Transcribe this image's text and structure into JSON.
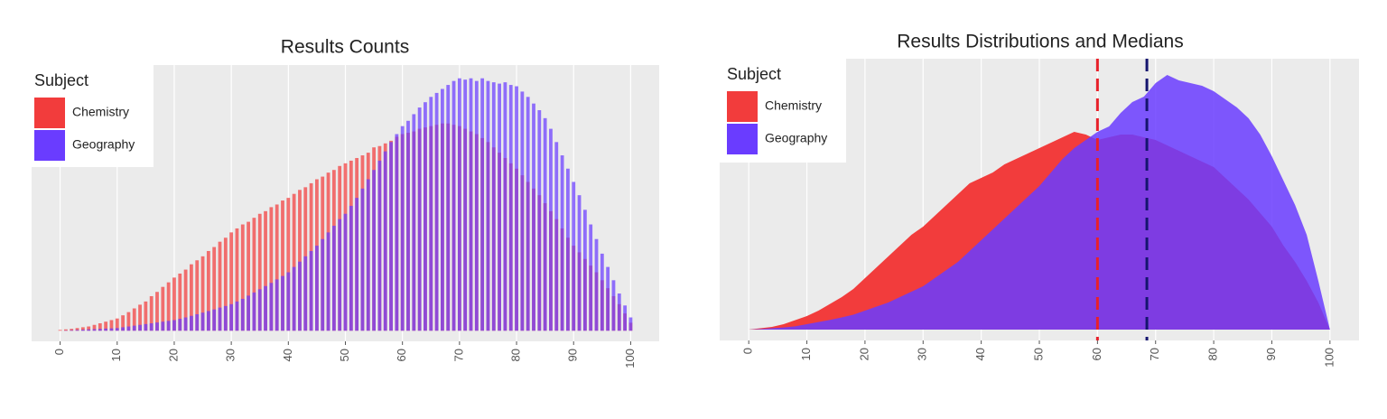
{
  "chart_data": [
    {
      "type": "bar",
      "title": "Results Counts",
      "legend_title": "Subject",
      "legend": "top-left",
      "grid": true,
      "xlim": [
        -5,
        105
      ],
      "ylim": [
        -4,
        100
      ],
      "xticks": [
        0,
        10,
        20,
        30,
        40,
        50,
        60,
        70,
        80,
        90,
        100
      ],
      "x": [
        0,
        1,
        2,
        3,
        4,
        5,
        6,
        7,
        8,
        9,
        10,
        11,
        12,
        13,
        14,
        15,
        16,
        17,
        18,
        19,
        20,
        21,
        22,
        23,
        24,
        25,
        26,
        27,
        28,
        29,
        30,
        31,
        32,
        33,
        34,
        35,
        36,
        37,
        38,
        39,
        40,
        41,
        42,
        43,
        44,
        45,
        46,
        47,
        48,
        49,
        50,
        51,
        52,
        53,
        54,
        55,
        56,
        57,
        58,
        59,
        60,
        61,
        62,
        63,
        64,
        65,
        66,
        67,
        68,
        69,
        70,
        71,
        72,
        73,
        74,
        75,
        76,
        77,
        78,
        79,
        80,
        81,
        82,
        83,
        84,
        85,
        86,
        87,
        88,
        89,
        90,
        91,
        92,
        93,
        94,
        95,
        96,
        97,
        98,
        99,
        100
      ],
      "series": [
        {
          "name": "Chemistry",
          "color": "#f23c3c",
          "values": [
            0.3,
            0.5,
            0.7,
            1,
            1.3,
            1.6,
            2.2,
            2.8,
            3.4,
            4,
            4.6,
            5.8,
            7,
            8.4,
            9.8,
            11,
            13,
            14.6,
            16.5,
            18.2,
            20,
            21.5,
            23,
            25,
            26.5,
            28,
            30,
            31.5,
            33.5,
            35,
            37,
            38.5,
            40,
            41,
            42.5,
            44,
            45,
            46.5,
            47.5,
            49,
            50,
            51.5,
            53,
            54,
            55.5,
            57,
            58,
            59.5,
            60.5,
            62,
            63,
            64,
            65,
            66,
            67,
            69,
            69.5,
            70.5,
            71.5,
            73,
            74,
            74.5,
            75,
            76,
            76.5,
            77,
            77.5,
            78,
            78,
            77.5,
            77,
            76,
            75,
            74,
            72.5,
            71,
            69,
            67,
            65,
            63,
            61,
            58.5,
            56,
            53.5,
            51,
            48,
            45,
            42,
            38.5,
            35,
            32,
            29.5,
            27,
            24.5,
            22,
            19,
            16,
            13,
            10,
            6.5,
            3
          ]
        },
        {
          "name": "Geography",
          "color": "#6a3cff",
          "values": [
            0,
            0.1,
            0.2,
            0.3,
            0.4,
            0.5,
            0.6,
            0.7,
            0.8,
            0.9,
            1,
            1.3,
            1.6,
            1.9,
            2.2,
            2.5,
            2.8,
            3.1,
            3.4,
            3.7,
            4,
            4.5,
            5,
            5.6,
            6.2,
            6.8,
            7.4,
            8,
            8.7,
            9.3,
            10,
            11,
            12,
            13.2,
            14.4,
            15.6,
            16.8,
            18,
            19.3,
            20.6,
            22,
            24,
            26,
            28,
            30,
            32,
            34.5,
            37,
            39.5,
            42,
            44,
            47,
            50,
            53.5,
            57,
            60.5,
            64,
            67.5,
            71,
            74,
            77,
            79,
            81.5,
            84,
            86,
            88,
            89.5,
            91,
            92.5,
            94,
            95,
            94.5,
            95,
            94,
            95,
            94,
            93.5,
            93,
            93.5,
            92.5,
            92,
            90,
            88,
            85.5,
            83,
            80,
            76,
            71,
            66,
            61,
            56,
            51,
            45.5,
            40,
            34.5,
            29,
            24,
            19,
            14,
            9.5,
            5
          ]
        }
      ]
    },
    {
      "type": "area",
      "title": "Results Distributions and Medians",
      "legend_title": "Subject",
      "legend": "top-left",
      "grid": true,
      "xlim": [
        -5,
        105
      ],
      "ylim": [
        -4,
        100
      ],
      "xticks": [
        0,
        10,
        20,
        30,
        40,
        50,
        60,
        70,
        80,
        90,
        100
      ],
      "x": [
        0,
        2,
        4,
        6,
        8,
        10,
        12,
        14,
        16,
        18,
        20,
        22,
        24,
        26,
        28,
        30,
        32,
        34,
        36,
        38,
        40,
        42,
        44,
        46,
        48,
        50,
        52,
        54,
        56,
        58,
        60,
        62,
        64,
        66,
        68,
        70,
        72,
        74,
        76,
        78,
        80,
        82,
        84,
        86,
        88,
        90,
        92,
        94,
        96,
        98,
        100
      ],
      "series": [
        {
          "name": "Chemistry",
          "color": "#f23c3c",
          "median": 60,
          "median_color": "#e8202a",
          "values": [
            0,
            0.5,
            1,
            2,
            3.5,
            5,
            7,
            9.5,
            12,
            15,
            19,
            23,
            27,
            31,
            35,
            38,
            42,
            46,
            50,
            54,
            56,
            58,
            61,
            63,
            65,
            67,
            69,
            71,
            73,
            72,
            70,
            71,
            72,
            72,
            71,
            70,
            68,
            66,
            64,
            62,
            60,
            56,
            52,
            48,
            43,
            38,
            31,
            25,
            18,
            10,
            0
          ]
        },
        {
          "name": "Geography",
          "color": "#6a3cff",
          "median": 68.5,
          "median_color": "#15156e",
          "values": [
            0,
            0.2,
            0.5,
            0.8,
            1.2,
            2,
            2.8,
            3.6,
            4.5,
            5.5,
            7,
            8.5,
            10,
            12,
            14,
            16,
            19,
            22,
            25,
            29,
            33,
            37,
            41,
            45,
            49,
            53,
            58,
            63,
            67,
            70,
            73,
            75,
            80,
            84,
            86,
            91,
            94,
            92,
            91,
            90,
            88,
            85,
            82,
            78,
            72,
            64,
            55,
            46,
            35,
            18,
            0
          ]
        }
      ]
    }
  ]
}
